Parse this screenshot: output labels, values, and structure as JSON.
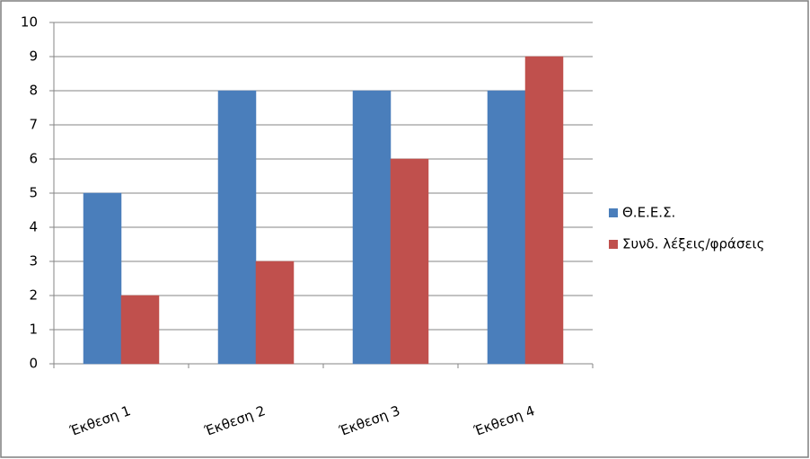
{
  "chart_data": {
    "type": "bar",
    "categories": [
      "Έκθεση 1",
      "Έκθεση 2",
      "Έκθεση 3",
      "Έκθεση 4"
    ],
    "series": [
      {
        "name": "Θ.Ε.Ε.Σ.",
        "color": "#4a7ebb",
        "values": [
          5,
          8,
          8,
          8
        ]
      },
      {
        "name": "Συνδ. λέξεις/φράσεις",
        "color": "#c0504d",
        "values": [
          2,
          3,
          6,
          9
        ]
      }
    ],
    "ylim": [
      0,
      10
    ],
    "yticks": [
      0,
      1,
      2,
      3,
      4,
      5,
      6,
      7,
      8,
      9,
      10
    ],
    "grid": true,
    "legend": "right"
  }
}
